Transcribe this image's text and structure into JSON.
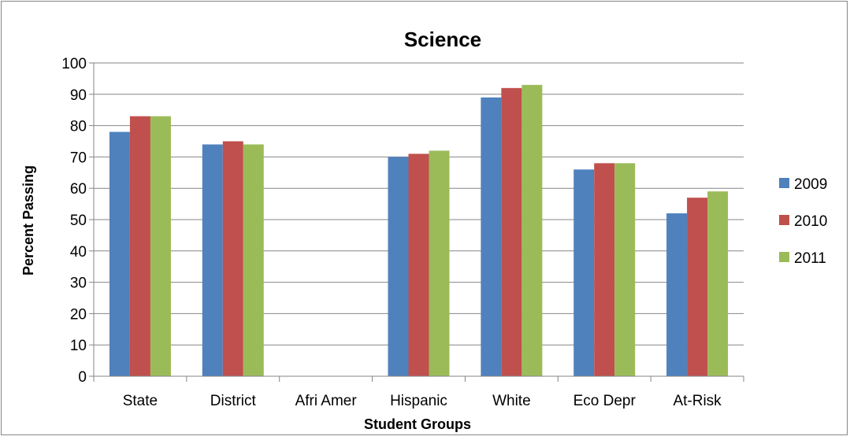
{
  "chart_data": {
    "type": "bar",
    "title": "Science",
    "xlabel": "Student Groups",
    "ylabel": "Percent Passing",
    "ylim": [
      0,
      100
    ],
    "yticks": [
      0,
      10,
      20,
      30,
      40,
      50,
      60,
      70,
      80,
      90,
      100
    ],
    "grid": true,
    "legend_position": "right",
    "categories": [
      "State",
      "District",
      "Afri Amer",
      "Hispanic",
      "White",
      "Eco Depr",
      "At-Risk"
    ],
    "series": [
      {
        "name": "2009",
        "color": "#4F81BD",
        "values": [
          78,
          74,
          null,
          70,
          89,
          66,
          52
        ]
      },
      {
        "name": "2010",
        "color": "#C0504D",
        "values": [
          83,
          75,
          null,
          71,
          92,
          68,
          57
        ]
      },
      {
        "name": "2011",
        "color": "#9BBB59",
        "values": [
          83,
          74,
          null,
          72,
          93,
          68,
          59
        ]
      }
    ]
  }
}
